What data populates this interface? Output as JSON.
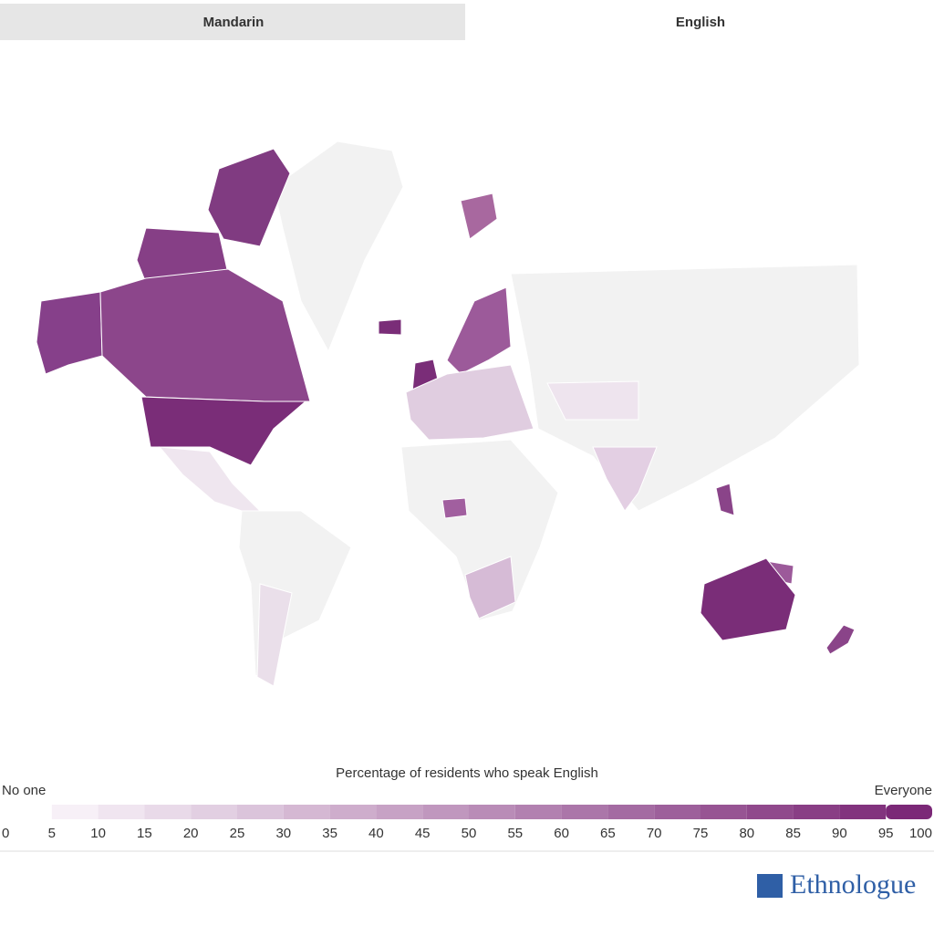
{
  "tabs": [
    {
      "label": "Mandarin",
      "active": false
    },
    {
      "label": "English",
      "active": true
    }
  ],
  "legend": {
    "title": "Percentage of residents who speak English",
    "min_label": "No one",
    "max_label": "Everyone",
    "ticks": [
      0,
      5,
      10,
      15,
      20,
      25,
      30,
      35,
      40,
      45,
      50,
      55,
      60,
      65,
      70,
      75,
      80,
      85,
      90,
      95,
      100
    ],
    "colors": [
      "#f7f0f7",
      "#7b2877"
    ]
  },
  "logo": {
    "text": "Ethnologue"
  }
}
